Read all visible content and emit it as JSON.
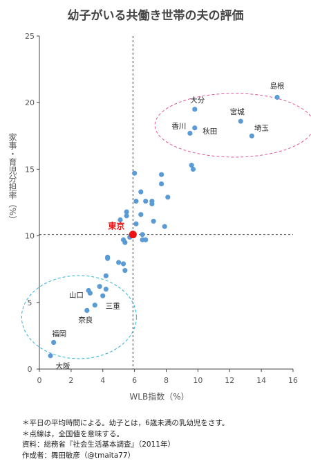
{
  "chart_data": {
    "type": "scatter",
    "title": "幼子がいる共働き世帯の夫の評価",
    "xlabel": "WLB指数（%）",
    "ylabel": "家事・育児分担率（%）",
    "xlim": [
      0,
      16
    ],
    "ylim": [
      0,
      25
    ],
    "xticks": [
      0,
      2,
      4,
      6,
      8,
      10,
      12,
      14,
      16
    ],
    "yticks": [
      0,
      5,
      10,
      15,
      20,
      25
    ],
    "reference_lines": {
      "x": 5.9,
      "y": 10.1
    },
    "highlight": {
      "label": "東京",
      "x": 5.9,
      "y": 10.1,
      "color": "#ee1111"
    },
    "point_color": "#5b9bd5",
    "labeled_points": [
      {
        "label": "島根",
        "x": 15.0,
        "y": 20.4
      },
      {
        "label": "大分",
        "x": 9.8,
        "y": 19.5
      },
      {
        "label": "宮城",
        "x": 12.7,
        "y": 18.6
      },
      {
        "label": "香川",
        "x": 9.5,
        "y": 17.7
      },
      {
        "label": "秋田",
        "x": 9.8,
        "y": 18.1
      },
      {
        "label": "埼玉",
        "x": 13.4,
        "y": 17.5
      },
      {
        "label": "山口",
        "x": 3.2,
        "y": 5.7
      },
      {
        "label": "三重",
        "x": 3.5,
        "y": 4.8
      },
      {
        "label": "奈良",
        "x": 3.0,
        "y": 4.4
      },
      {
        "label": "福岡",
        "x": 0.9,
        "y": 2.0
      },
      {
        "label": "大阪",
        "x": 0.7,
        "y": 1.0
      }
    ],
    "points": [
      {
        "x": 6.0,
        "y": 14.7
      },
      {
        "x": 7.7,
        "y": 14.6
      },
      {
        "x": 9.6,
        "y": 15.3
      },
      {
        "x": 9.7,
        "y": 15.0
      },
      {
        "x": 7.7,
        "y": 13.9
      },
      {
        "x": 6.4,
        "y": 13.3
      },
      {
        "x": 8.1,
        "y": 12.9
      },
      {
        "x": 6.1,
        "y": 12.6
      },
      {
        "x": 6.7,
        "y": 12.6
      },
      {
        "x": 7.1,
        "y": 12.6
      },
      {
        "x": 7.1,
        "y": 12.4
      },
      {
        "x": 5.5,
        "y": 11.8
      },
      {
        "x": 5.5,
        "y": 11.5
      },
      {
        "x": 6.4,
        "y": 11.6
      },
      {
        "x": 5.1,
        "y": 11.2
      },
      {
        "x": 7.2,
        "y": 11.1
      },
      {
        "x": 6.1,
        "y": 10.9
      },
      {
        "x": 7.9,
        "y": 10.7
      },
      {
        "x": 5.3,
        "y": 9.7
      },
      {
        "x": 5.7,
        "y": 9.9
      },
      {
        "x": 6.5,
        "y": 9.7
      },
      {
        "x": 6.7,
        "y": 9.7
      },
      {
        "x": 6.5,
        "y": 10.1
      },
      {
        "x": 5.4,
        "y": 9.5
      },
      {
        "x": 4.3,
        "y": 8.4
      },
      {
        "x": 4.3,
        "y": 8.3
      },
      {
        "x": 5.0,
        "y": 8.0
      },
      {
        "x": 5.3,
        "y": 7.9
      },
      {
        "x": 5.4,
        "y": 7.4
      },
      {
        "x": 4.2,
        "y": 7.0
      },
      {
        "x": 3.8,
        "y": 6.2
      },
      {
        "x": 4.2,
        "y": 6.0
      },
      {
        "x": 3.1,
        "y": 5.9
      },
      {
        "x": 4.0,
        "y": 5.5
      }
    ]
  },
  "notes": [
    "＊平日の平均時間による。幼子とは，6歳未満の乳幼児をさす。",
    "＊点線は，全国値を意味する。",
    "資料：総務省『社会生活基本調査』（2011年）",
    "作成者：舞田敏彦（@tmaita77）"
  ]
}
